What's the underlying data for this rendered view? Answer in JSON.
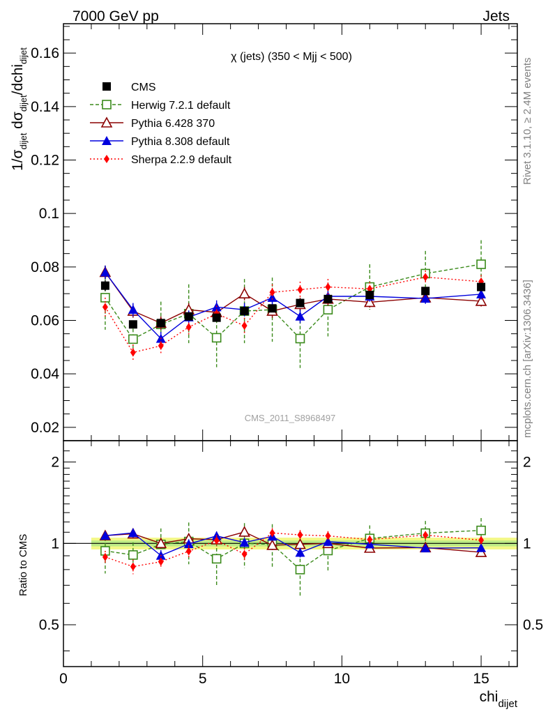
{
  "header": {
    "left": "7000 GeV pp",
    "right": "Jets"
  },
  "side_labels": {
    "rivet": "Rivet 3.1.10, ≥ 2.4M events",
    "mcplots": "mcplots.cern.ch [arXiv:1306.3436]"
  },
  "watermark": "CMS_2011_S8968497",
  "chart_data": {
    "type": "scatter",
    "title": "χ (jets) (350 < Mjj <  500)",
    "xlabel": {
      "main": "chi",
      "sub": "dijet"
    },
    "ylabel": {
      "p1": "1/σ",
      "s1": "dijet",
      "p2": " dσ",
      "s2": "dijet",
      "p3": "/dchi",
      "s3": "dijet"
    },
    "ratio_ylabel": "Ratio to CMS",
    "xlim": [
      0,
      16.3
    ],
    "ylim": [
      0.015,
      0.171
    ],
    "ratio_ylim": [
      0.35,
      2.4
    ],
    "ratio_scale": "log",
    "x_ticks": [
      0,
      5,
      10,
      15
    ],
    "y_ticks": [
      0.02,
      0.04,
      0.06,
      0.08,
      0.1,
      0.12,
      0.14,
      0.16
    ],
    "y_tick_labels": [
      "0.02",
      "0.04",
      "0.06",
      "0.08",
      "0.1",
      "0.12",
      "0.14",
      "0.16"
    ],
    "ratio_ticks": [
      0.5,
      1,
      2
    ],
    "ratio_tick_labels": [
      "0.5",
      "1",
      "2"
    ],
    "legend_position": "top-left",
    "bins": [
      [
        1,
        2
      ],
      [
        2,
        3
      ],
      [
        3,
        4
      ],
      [
        4,
        5
      ],
      [
        5,
        6
      ],
      [
        6,
        7
      ],
      [
        7,
        8
      ],
      [
        8,
        9
      ],
      [
        9,
        10
      ],
      [
        10,
        12
      ],
      [
        12,
        14
      ],
      [
        14,
        16
      ]
    ],
    "x": [
      1.5,
      2.5,
      3.5,
      4.5,
      5.5,
      6.5,
      7.5,
      8.5,
      9.5,
      11,
      13,
      15
    ],
    "series": [
      {
        "name": "CMS",
        "color": "#000000",
        "marker": "square-filled",
        "line": "none",
        "values": [
          0.073,
          0.0585,
          0.059,
          0.0615,
          0.061,
          0.0635,
          0.0645,
          0.0665,
          0.068,
          0.0695,
          0.071,
          0.0725
        ],
        "errors": [
          0.002,
          0.0015,
          0.0015,
          0.0015,
          0.0015,
          0.0015,
          0.0015,
          0.0015,
          0.0015,
          0.0015,
          0.0015,
          0.0015
        ]
      },
      {
        "name": "Herwig 7.2.1 default",
        "color": "#3a8a1a",
        "marker": "square-open",
        "line": "dashed",
        "values": [
          0.0685,
          0.053,
          0.0585,
          0.0625,
          0.0535,
          0.0635,
          0.064,
          0.0532,
          0.064,
          0.0725,
          0.0775,
          0.081
        ],
        "errors": [
          0.012,
          0.006,
          0.0085,
          0.011,
          0.011,
          0.012,
          0.012,
          0.011,
          0.01,
          0.0085,
          0.0085,
          0.009
        ]
      },
      {
        "name": "Pythia 6.428 370",
        "color": "#8b0000",
        "marker": "triangle-open",
        "line": "solid",
        "values": [
          0.078,
          0.0635,
          0.059,
          0.064,
          0.063,
          0.07,
          0.0635,
          0.066,
          0.068,
          0.0668,
          0.0685,
          0.0672
        ],
        "errors": [
          0.0025,
          0.0025,
          0.0025,
          0.0025,
          0.0025,
          0.0025,
          0.0025,
          0.0025,
          0.0025,
          0.002,
          0.002,
          0.002
        ]
      },
      {
        "name": "Pythia 8.308 default",
        "color": "#0000dd",
        "marker": "triangle-filled",
        "line": "solid",
        "values": [
          0.078,
          0.064,
          0.0532,
          0.0612,
          0.065,
          0.064,
          0.0685,
          0.0615,
          0.069,
          0.069,
          0.0682,
          0.0698
        ],
        "errors": [
          0.0025,
          0.0025,
          0.0025,
          0.0025,
          0.0025,
          0.0025,
          0.0025,
          0.0025,
          0.0025,
          0.002,
          0.002,
          0.002
        ]
      },
      {
        "name": "Sherpa 2.2.9 default",
        "color": "#ff0000",
        "marker": "diamond-filled",
        "line": "dotted",
        "values": [
          0.065,
          0.048,
          0.0505,
          0.0575,
          0.0625,
          0.058,
          0.0705,
          0.0715,
          0.0725,
          0.0718,
          0.0762,
          0.0745
        ],
        "errors": [
          0.0035,
          0.003,
          0.003,
          0.003,
          0.003,
          0.003,
          0.003,
          0.003,
          0.003,
          0.0025,
          0.0025,
          0.0025
        ]
      }
    ]
  }
}
